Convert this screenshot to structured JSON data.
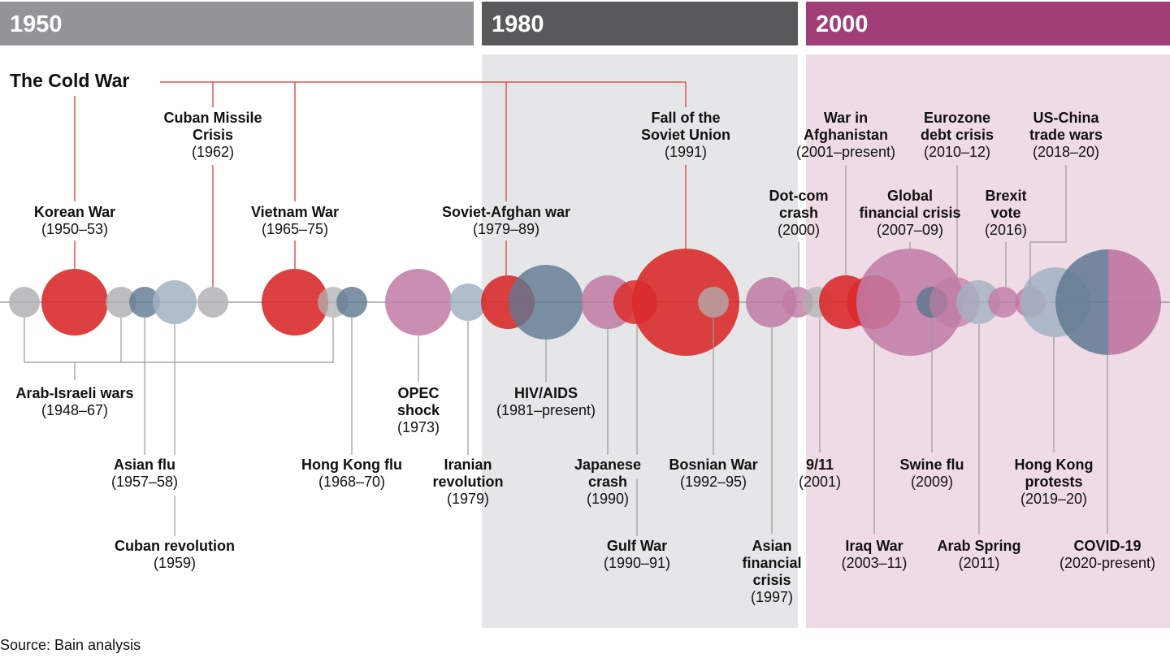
{
  "eras": [
    {
      "label": "1950",
      "color": "#939498",
      "bg": "#ffffff"
    },
    {
      "label": "1980",
      "color": "#58595b",
      "bg": "#e5e6e8"
    },
    {
      "label": "2000",
      "color": "#a13e78",
      "bg": "#efdbe6"
    }
  ],
  "cold_war_label": "The Cold War",
  "source": "Source: Bain analysis",
  "colors": {
    "war": "#d92b2b",
    "political": "#b0b1b3",
    "pandemic": "#5f7891",
    "health_light": "#a2b2c2",
    "economic": "#c07aa4",
    "cold_war_line": "#dc5656",
    "leader": "#999999"
  },
  "events": [
    {
      "title": "Arab-Israeli wars",
      "date": "(1948–67)"
    },
    {
      "title": "Korean War",
      "date": "(1950–53)"
    },
    {
      "title": "Asian flu",
      "date": "(1957–58)"
    },
    {
      "title": "Cuban revolution",
      "date": "(1959)"
    },
    {
      "title": "Cuban Missile Crisis",
      "title2": "Crisis",
      "date": "(1962)"
    },
    {
      "title": "Vietnam War",
      "date": "(1965–75)"
    },
    {
      "title": "Hong Kong flu",
      "date": "(1968–70)"
    },
    {
      "title": "OPEC",
      "title2": "shock",
      "date": "(1973)"
    },
    {
      "title": "Iranian",
      "title2": "revolution",
      "date": "(1979)"
    },
    {
      "title": "Soviet-Afghan war",
      "date": "(1979–89)"
    },
    {
      "title": "HIV/AIDS",
      "date": "(1981–present)"
    },
    {
      "title": "Japanese",
      "title2": "crash",
      "date": "(1990)"
    },
    {
      "title": "Gulf War",
      "date": "(1990–91)"
    },
    {
      "title": "Fall of the",
      "title2": "Soviet Union",
      "date": "(1991)"
    },
    {
      "title": "Bosnian War",
      "date": "(1992–95)"
    },
    {
      "title": "Asian",
      "title2": "financial",
      "title3": "crisis",
      "date": "(1997)"
    },
    {
      "title": "Dot-com",
      "title2": "crash",
      "date": "(2000)"
    },
    {
      "title": "9/11",
      "date": "(2001)"
    },
    {
      "title": "War in",
      "title2": "Afghanistan",
      "date": "(2001–present)"
    },
    {
      "title": "Iraq War",
      "date": "(2003–11)"
    },
    {
      "title": "Global",
      "title2": "financial crisis",
      "date": "(2007–09)"
    },
    {
      "title": "Swine flu",
      "date": "(2009)"
    },
    {
      "title": "Eurozone",
      "title2": "debt crisis",
      "date": "(2010–12)"
    },
    {
      "title": "Arab Spring",
      "date": "(2011)"
    },
    {
      "title": "Brexit",
      "title2": "vote",
      "date": "(2016)"
    },
    {
      "title": "US-China",
      "title2": "trade wars",
      "date": "(2018–20)"
    },
    {
      "title": "Hong Kong",
      "title2": "protests",
      "date": "(2019–20)"
    },
    {
      "title": "COVID-19",
      "date": "(2020-present)"
    }
  ]
}
